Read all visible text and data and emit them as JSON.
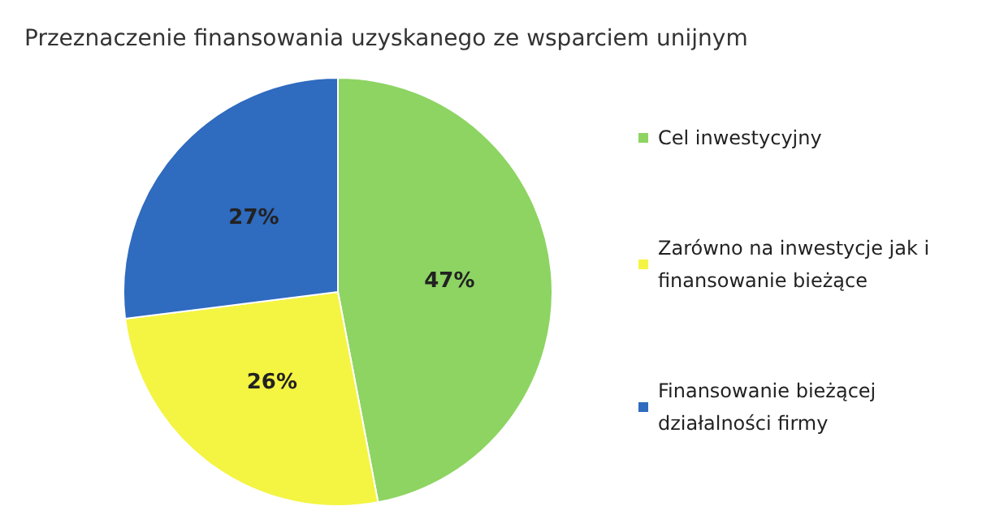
{
  "chart_data": {
    "type": "pie",
    "title": "Przeznaczenie finansowania uzyskanego ze wsparciem unijnym",
    "categories": [
      "Cel inwestycyjny",
      "Zarówno na inwestycje jak i finansowanie bieżące",
      "Finansowanie bieżącej działalności firmy"
    ],
    "values": [
      47,
      26,
      27
    ],
    "colors": [
      "#8dd462",
      "#f4f443",
      "#2f6bbf"
    ],
    "value_labels": [
      "47%",
      "26%",
      "27%"
    ],
    "legend": "right"
  }
}
